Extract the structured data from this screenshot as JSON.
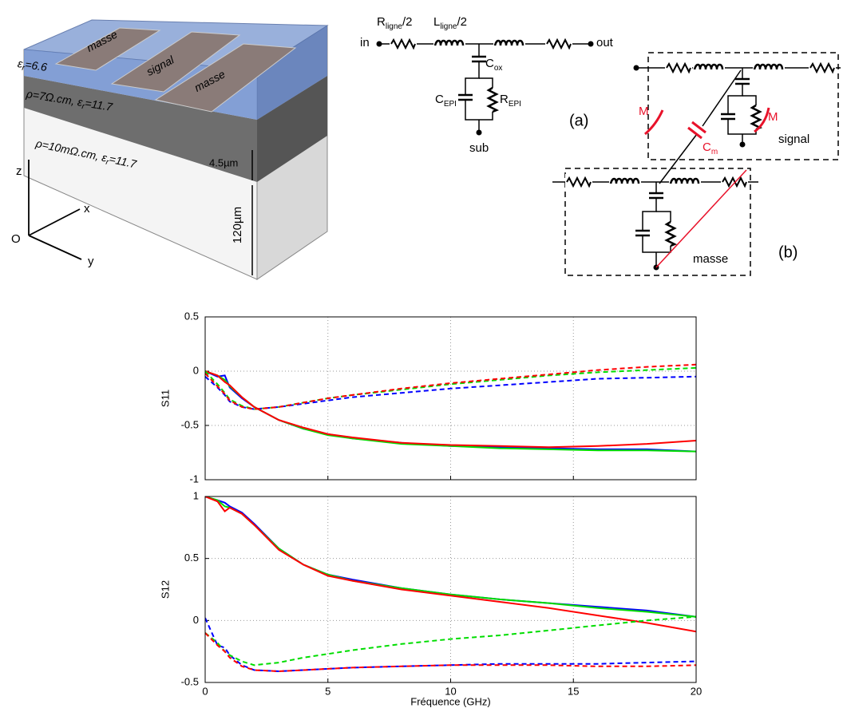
{
  "diagram": {
    "structure": {
      "masse_left": "masse",
      "signal": "signal",
      "masse_right": "masse",
      "eps_top": [
        "ε",
        "r",
        "=6.6"
      ],
      "layer_epi": [
        "ρ=7Ω.cm, ε",
        "r",
        "=11.7"
      ],
      "layer_sub": [
        "ρ=10mΩ.cm, ε",
        "r",
        "=11.7"
      ],
      "thickness_epi": "4.5µm",
      "thickness_sub": "120µm",
      "axis_z": "z",
      "axis_x": "x",
      "axis_y": "y",
      "origin": "O"
    },
    "circuit_a": {
      "r_ligne": [
        "R",
        "ligne",
        "/2"
      ],
      "l_ligne": [
        "L",
        "ligne",
        "/2"
      ],
      "in": "in",
      "out": "out",
      "c_ox": [
        "C",
        "ox"
      ],
      "c_epi": [
        "C",
        "EPI"
      ],
      "r_epi": [
        "R",
        "EPI"
      ],
      "sub": "sub",
      "panel": "(a)"
    },
    "circuit_b": {
      "m_left": "M",
      "m_right": "M",
      "c_m": [
        "C",
        "m"
      ],
      "signal": "signal",
      "masse": "masse",
      "panel": "(b)"
    }
  },
  "chart_data": [
    {
      "type": "line",
      "ylabel": "S11",
      "xlim": [
        0,
        20
      ],
      "ylim": [
        -1,
        0.5
      ],
      "xticks": [
        0,
        5,
        10,
        15,
        20
      ],
      "show_xtick_labels": false,
      "yticks": [
        -1,
        -0.5,
        0,
        0.5
      ],
      "grid": true,
      "x": [
        0,
        0.5,
        0.8,
        1,
        1.5,
        2,
        3,
        4,
        5,
        6,
        8,
        10,
        12,
        14,
        16,
        18,
        20
      ],
      "series": [
        {
          "color": "#0000ff",
          "dashed": false,
          "values": [
            0,
            -0.05,
            -0.04,
            -0.15,
            -0.25,
            -0.33,
            -0.45,
            -0.53,
            -0.58,
            -0.62,
            -0.66,
            -0.69,
            -0.7,
            -0.71,
            -0.72,
            -0.72,
            -0.74
          ]
        },
        {
          "color": "#00dd00",
          "dashed": false,
          "values": [
            0,
            -0.04,
            -0.08,
            -0.14,
            -0.24,
            -0.33,
            -0.45,
            -0.53,
            -0.59,
            -0.62,
            -0.67,
            -0.69,
            -0.71,
            -0.72,
            -0.73,
            -0.73,
            -0.74
          ]
        },
        {
          "color": "#ff0000",
          "dashed": false,
          "values": [
            0,
            -0.04,
            -0.1,
            -0.13,
            -0.24,
            -0.33,
            -0.45,
            -0.52,
            -0.58,
            -0.61,
            -0.66,
            -0.68,
            -0.69,
            -0.7,
            -0.69,
            -0.67,
            -0.64
          ]
        },
        {
          "color": "#0000ff",
          "dashed": true,
          "values": [
            -0.05,
            -0.15,
            -0.22,
            -0.28,
            -0.33,
            -0.35,
            -0.33,
            -0.3,
            -0.27,
            -0.24,
            -0.2,
            -0.16,
            -0.13,
            -0.1,
            -0.07,
            -0.06,
            -0.05
          ]
        },
        {
          "color": "#00dd00",
          "dashed": true,
          "values": [
            0,
            -0.12,
            -0.2,
            -0.26,
            -0.32,
            -0.35,
            -0.33,
            -0.29,
            -0.25,
            -0.22,
            -0.17,
            -0.12,
            -0.08,
            -0.04,
            -0.01,
            0.01,
            0.03
          ]
        },
        {
          "color": "#ff0000",
          "dashed": true,
          "values": [
            -0.02,
            -0.14,
            -0.21,
            -0.27,
            -0.33,
            -0.35,
            -0.33,
            -0.29,
            -0.25,
            -0.22,
            -0.16,
            -0.11,
            -0.07,
            -0.03,
            0.01,
            0.04,
            0.06
          ]
        }
      ]
    },
    {
      "type": "line",
      "ylabel": "S12",
      "xlabel": "Fréquence (GHz)",
      "xlim": [
        0,
        20
      ],
      "ylim": [
        -0.5,
        1
      ],
      "xticks": [
        0,
        5,
        10,
        15,
        20
      ],
      "show_xtick_labels": true,
      "yticks": [
        -0.5,
        0,
        0.5,
        1
      ],
      "grid": true,
      "x": [
        0,
        0.5,
        0.8,
        1,
        1.5,
        2,
        3,
        4,
        5,
        6,
        8,
        10,
        12,
        14,
        16,
        18,
        20
      ],
      "series": [
        {
          "color": "#0000ff",
          "dashed": false,
          "values": [
            1,
            0.97,
            0.95,
            0.92,
            0.87,
            0.78,
            0.58,
            0.45,
            0.37,
            0.33,
            0.26,
            0.21,
            0.17,
            0.14,
            0.11,
            0.08,
            0.03
          ]
        },
        {
          "color": "#00dd00",
          "dashed": false,
          "values": [
            1,
            0.97,
            0.92,
            0.91,
            0.86,
            0.77,
            0.58,
            0.45,
            0.37,
            0.32,
            0.26,
            0.21,
            0.17,
            0.14,
            0.1,
            0.07,
            0.03
          ]
        },
        {
          "color": "#ff0000",
          "dashed": false,
          "values": [
            1,
            0.96,
            0.88,
            0.91,
            0.86,
            0.77,
            0.57,
            0.45,
            0.36,
            0.32,
            0.25,
            0.2,
            0.15,
            0.1,
            0.04,
            -0.02,
            -0.09
          ]
        },
        {
          "color": "#0000ff",
          "dashed": true,
          "values": [
            0.02,
            -0.2,
            -0.22,
            -0.28,
            -0.36,
            -0.4,
            -0.41,
            -0.4,
            -0.39,
            -0.38,
            -0.37,
            -0.36,
            -0.35,
            -0.35,
            -0.35,
            -0.34,
            -0.33
          ]
        },
        {
          "color": "#00dd00",
          "dashed": true,
          "values": [
            -0.1,
            -0.18,
            -0.25,
            -0.28,
            -0.33,
            -0.36,
            -0.34,
            -0.3,
            -0.27,
            -0.24,
            -0.19,
            -0.15,
            -0.12,
            -0.08,
            -0.04,
            0,
            0.03
          ]
        },
        {
          "color": "#ff0000",
          "dashed": true,
          "values": [
            -0.1,
            -0.2,
            -0.25,
            -0.3,
            -0.37,
            -0.4,
            -0.41,
            -0.4,
            -0.39,
            -0.38,
            -0.37,
            -0.36,
            -0.36,
            -0.36,
            -0.37,
            -0.37,
            -0.36
          ]
        }
      ]
    }
  ]
}
